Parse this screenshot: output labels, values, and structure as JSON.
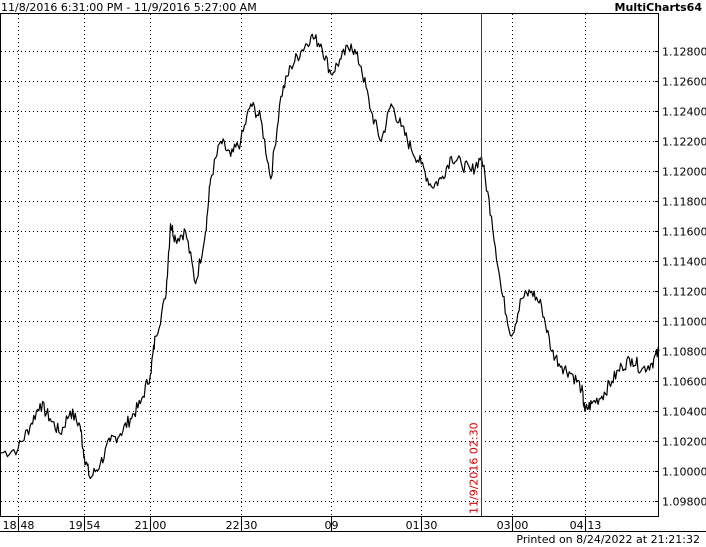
{
  "header": {
    "range": "11/8/2016 6:31:00 PM - 11/9/2016 5:27:00 AM",
    "app": "MultiCharts64"
  },
  "footer": {
    "printed": "Printed on 8/24/2022 at 21:21:32"
  },
  "colors": {
    "price_line": "#000000",
    "grid": "#000000",
    "marker": "#cc0000",
    "background": "#ffffff"
  },
  "chart_data": {
    "type": "line",
    "grid": true,
    "ylim": [
      1.097,
      1.1305
    ],
    "xlim": [
      "18:31",
      "05:27"
    ],
    "y_ticks": [
      "1.09800",
      "1.10000",
      "1.10200",
      "1.10400",
      "1.10600",
      "1.10800",
      "1.11000",
      "1.11200",
      "1.11400",
      "1.11600",
      "1.11800",
      "1.12000",
      "1.12200",
      "1.12400",
      "1.12600",
      "1.12800"
    ],
    "x_ticks": [
      "18:48",
      "19:54",
      "21:00",
      "22:30",
      "09",
      "01:30",
      "03:00",
      "04:13"
    ],
    "marker": {
      "x": "02:30",
      "label": "11/9/2016 02:30"
    },
    "series": [
      {
        "x": [
          "18:31",
          "18:48",
          "19:00",
          "19:10",
          "19:20",
          "19:30",
          "19:40",
          "19:50",
          "19:54",
          "20:00",
          "20:10",
          "20:20",
          "20:30",
          "20:40",
          "20:50",
          "21:00",
          "21:05",
          "21:15",
          "21:20",
          "21:25",
          "21:35",
          "21:45",
          "21:55",
          "22:00",
          "22:10",
          "22:20",
          "22:30",
          "22:40",
          "22:50",
          "23:00",
          "23:10",
          "23:20",
          "23:30",
          "23:40",
          "23:50",
          "00:00",
          "00:10",
          "00:20",
          "00:30",
          "00:40",
          "00:50",
          "01:00",
          "01:10",
          "01:20",
          "01:30",
          "01:40",
          "01:50",
          "02:00",
          "02:10",
          "02:20",
          "02:30",
          "02:40",
          "02:50",
          "03:00",
          "03:10",
          "03:20",
          "03:30",
          "03:40",
          "03:50",
          "04:00",
          "04:10",
          "04:13",
          "04:20",
          "04:30",
          "04:40",
          "04:50",
          "05:00",
          "05:10",
          "05:20",
          "05:27"
        ],
        "y": [
          1.1012,
          1.1015,
          1.103,
          1.1045,
          1.1035,
          1.1025,
          1.104,
          1.103,
          1.101,
          1.0995,
          1.1005,
          1.102,
          1.1025,
          1.1035,
          1.1045,
          1.1065,
          1.109,
          1.1115,
          1.1165,
          1.1155,
          1.116,
          1.1125,
          1.116,
          1.1195,
          1.122,
          1.121,
          1.122,
          1.1245,
          1.1235,
          1.1195,
          1.125,
          1.127,
          1.128,
          1.129,
          1.1285,
          1.1265,
          1.1275,
          1.1285,
          1.127,
          1.124,
          1.122,
          1.1245,
          1.123,
          1.1215,
          1.1205,
          1.119,
          1.1195,
          1.121,
          1.1205,
          1.12,
          1.121,
          1.117,
          1.112,
          1.109,
          1.1115,
          1.112,
          1.111,
          1.108,
          1.107,
          1.1065,
          1.1055,
          1.104,
          1.1045,
          1.105,
          1.106,
          1.107,
          1.1075,
          1.1068,
          1.1072,
          1.108
        ]
      }
    ]
  }
}
